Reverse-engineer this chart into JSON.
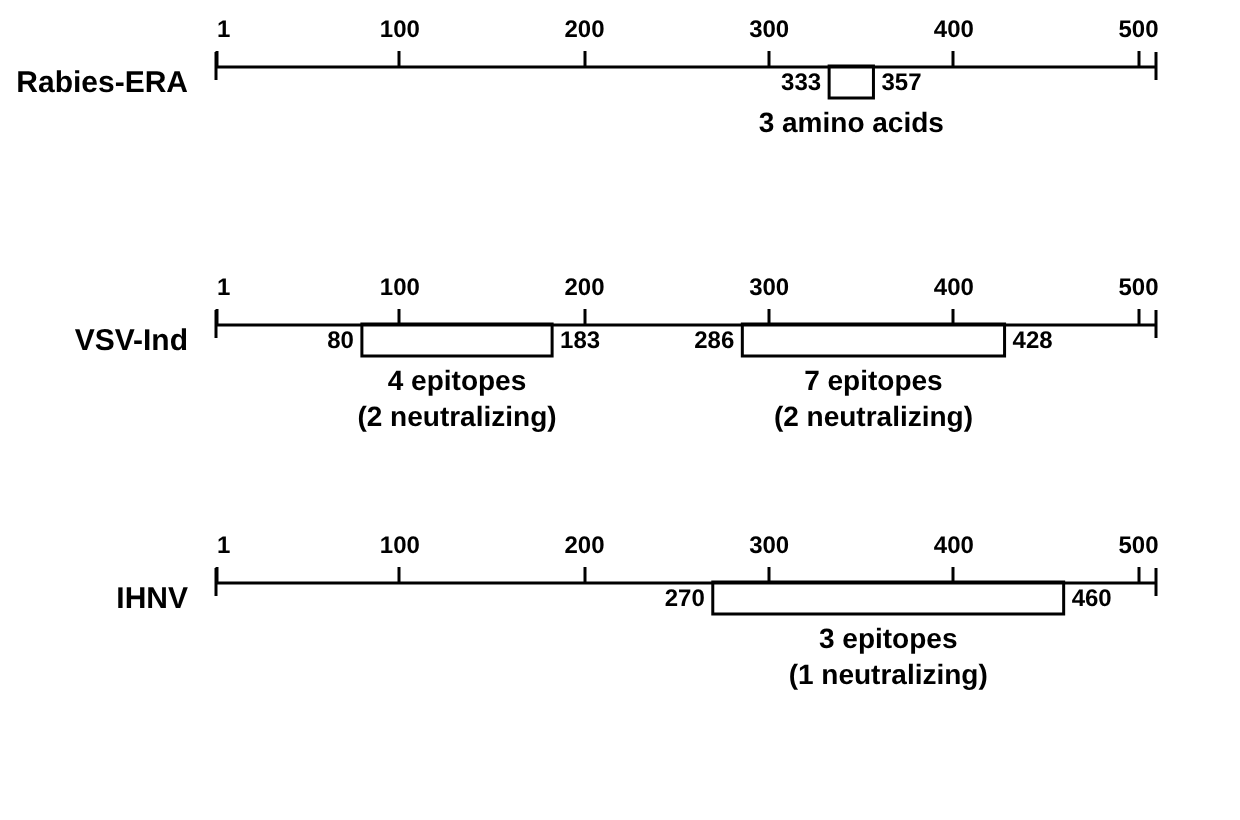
{
  "chart_data": [
    {
      "type": "bar",
      "orientation": "horizontal",
      "categories": [
        "Rabies-ERA"
      ],
      "xlim": [
        1,
        510
      ],
      "xticks": [
        1,
        100,
        200,
        300,
        400,
        500
      ],
      "series": [
        {
          "color": "#000000",
          "base": [
            333
          ],
          "values": [
            24
          ]
        }
      ],
      "annotations": [
        {
          "text": "333",
          "x": 333
        },
        {
          "text": "357",
          "x": 357
        },
        "3 amino acids"
      ]
    },
    {
      "type": "bar",
      "orientation": "horizontal",
      "categories": [
        "VSV-Ind"
      ],
      "xlim": [
        1,
        510
      ],
      "xticks": [
        1,
        100,
        200,
        300,
        400,
        500
      ],
      "series": [
        {
          "color": "#000000",
          "base": [
            80
          ],
          "values": [
            103
          ]
        },
        {
          "color": "#000000",
          "base": [
            286
          ],
          "values": [
            142
          ]
        }
      ],
      "annotations": [
        {
          "text": "80",
          "x": 80
        },
        {
          "text": "183",
          "x": 183
        },
        {
          "text": "286",
          "x": 286
        },
        {
          "text": "428",
          "x": 428
        },
        "4 epitopes\n(2 neutralizing)",
        "7 epitopes\n(2 neutralizing)"
      ]
    },
    {
      "type": "bar",
      "orientation": "horizontal",
      "categories": [
        "IHNV"
      ],
      "xlim": [
        1,
        510
      ],
      "xticks": [
        1,
        100,
        200,
        300,
        400,
        500
      ],
      "series": [
        {
          "color": "#000000",
          "base": [
            270
          ],
          "values": [
            190
          ]
        }
      ],
      "annotations": [
        {
          "text": "270",
          "x": 270
        },
        {
          "text": "460",
          "x": 460
        },
        "3 epitopes\n(1 neutralizing)"
      ]
    }
  ]
}
